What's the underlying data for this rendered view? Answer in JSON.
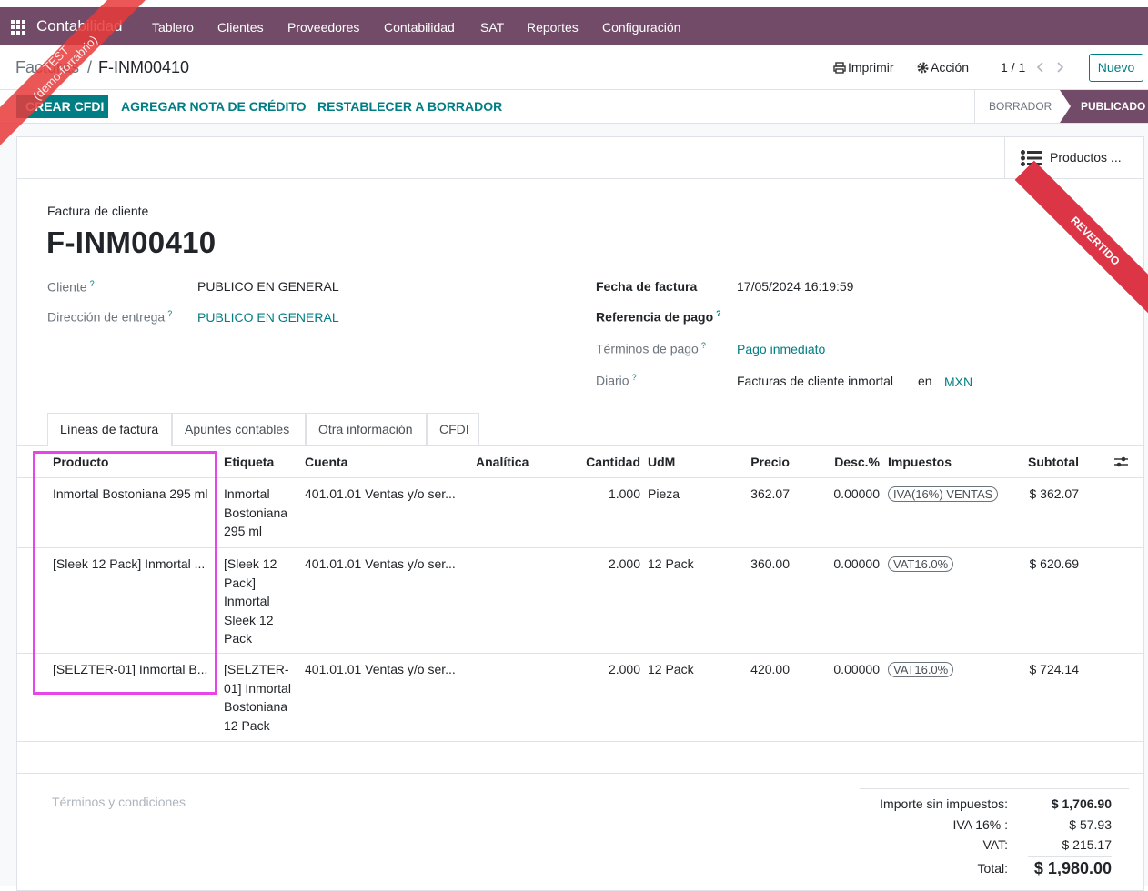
{
  "navbar": {
    "app": "Contabilidad",
    "menu": [
      "Tablero",
      "Clientes",
      "Proveedores",
      "Contabilidad",
      "SAT",
      "Reportes",
      "Configuración"
    ]
  },
  "test_ribbon": {
    "title": "TEST",
    "database": "(demo-forrabrio)"
  },
  "breadcrumb": {
    "parent": "Facturas",
    "separator": "/",
    "current": "F-INM00410"
  },
  "control_panel": {
    "print": "Imprimir",
    "action": "Acción",
    "pager": "1 / 1",
    "new": "Nuevo"
  },
  "action_buttons": [
    "CREAR CFDI",
    "AGREGAR NOTA DE CRÉDITO",
    "RESTABLECER A BORRADOR"
  ],
  "statusbar": [
    "BORRADOR",
    "PUBLICADO"
  ],
  "smart_button": "Productos ...",
  "state_ribbon": "REVERTIDO",
  "form": {
    "move_type": "Factura de cliente",
    "name": "F-INM00410",
    "help_mark": "?",
    "partner": {
      "label": "Cliente",
      "value": "PUBLICO EN GENERAL"
    },
    "shipping": {
      "label": "Dirección de entrega",
      "value": "PUBLICO EN GENERAL"
    },
    "invoice_date": {
      "label": "Fecha de factura",
      "value": "17/05/2024 16:19:59"
    },
    "payment_ref": {
      "label": "Referencia de pago"
    },
    "payment_terms": {
      "label": "Términos de pago",
      "value": "Pago inmediato"
    },
    "journal": {
      "label": "Diario",
      "value": "Facturas de cliente inmortal",
      "in": "en",
      "currency": "MXN"
    }
  },
  "tabs": [
    "Líneas de factura",
    "Apuntes contables",
    "Otra información",
    "CFDI"
  ],
  "table": {
    "headers": [
      "Producto",
      "Etiqueta",
      "Cuenta",
      "Analítica",
      "Cantidad",
      "UdM",
      "Precio",
      "Desc.%",
      "Impuestos",
      "Subtotal"
    ],
    "rows": [
      [
        "Inmortal Bostoniana 295 ml",
        "Inmortal Bostoniana 295 ml",
        "401.01.01 Ventas y/o ser...",
        "",
        "1.000",
        "Pieza",
        "362.07",
        "0.00000",
        "IVA(16%) VENTAS",
        "$ 362.07"
      ],
      [
        "[Sleek 12 Pack] Inmortal ...",
        "[Sleek 12 Pack] Inmortal Sleek 12 Pack",
        "401.01.01 Ventas y/o ser...",
        "",
        "2.000",
        "12 Pack",
        "360.00",
        "0.00000",
        "VAT16.0%",
        "$ 620.69"
      ],
      [
        "[SELZTER-01] Inmortal B...",
        "[SELZTER-01] Inmortal Bostoniana 12 Pack",
        "401.01.01 Ventas y/o ser...",
        "",
        "2.000",
        "12 Pack",
        "420.00",
        "0.00000",
        "VAT16.0%",
        "$ 724.14"
      ]
    ]
  },
  "footer": {
    "terms_placeholder": "Términos y condiciones",
    "totals": [
      {
        "label": "Importe sin impuestos:",
        "value": "$ 1,706.90"
      },
      {
        "label": "IVA 16% :",
        "value": "$ 57.93"
      },
      {
        "label": "VAT:",
        "value": "$ 215.17"
      },
      {
        "label": "Total:",
        "value": "$ 1,980.00"
      }
    ]
  }
}
